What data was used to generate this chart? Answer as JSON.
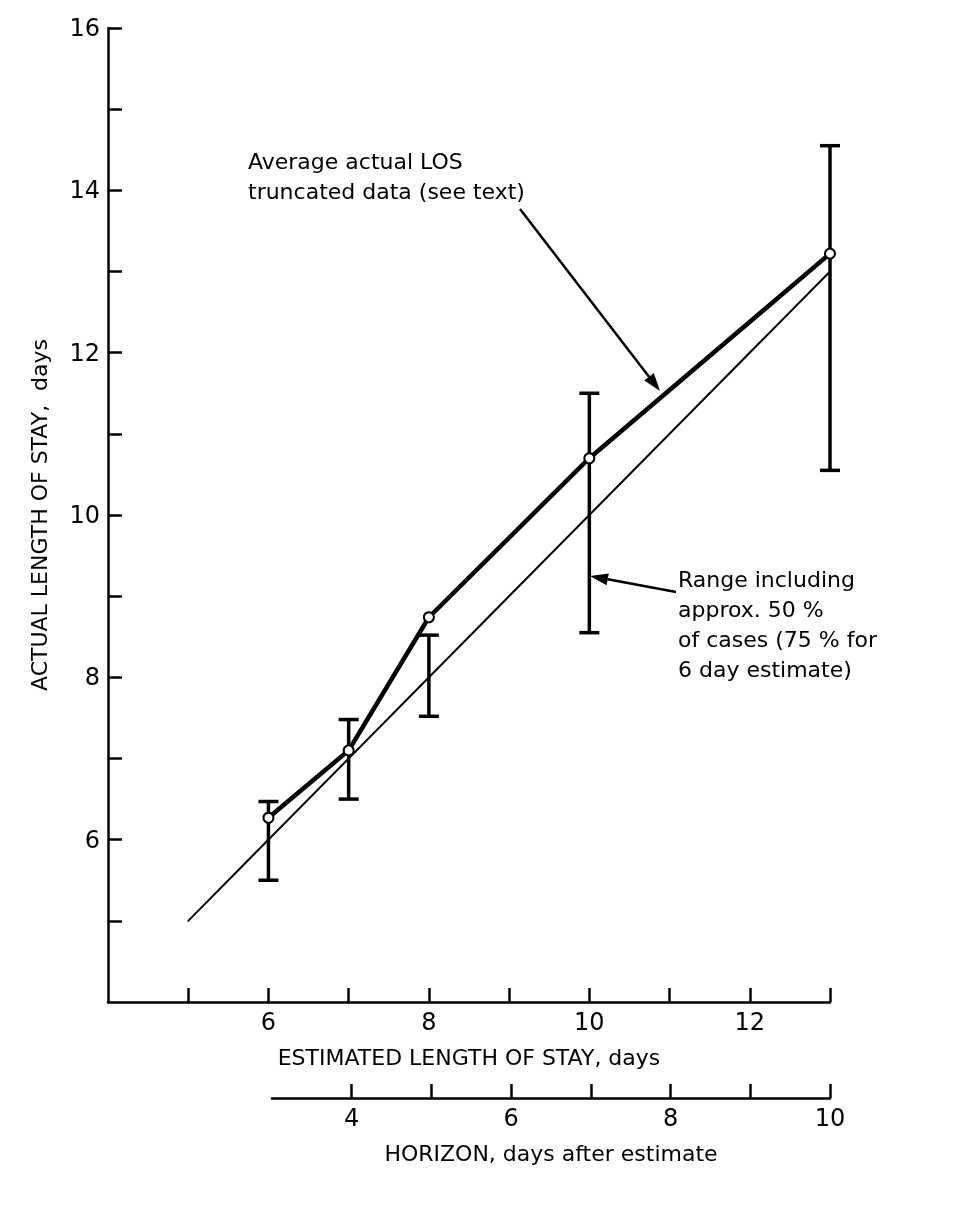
{
  "chart_data": {
    "type": "line",
    "xlabel": "ESTIMATED LENGTH OF STAY, days",
    "ylabel": "ACTUAL LENGTH OF STAY,  days",
    "x2label": "HORIZON, days after estimate",
    "xlim": [
      4,
      13
    ],
    "ylim": [
      4,
      16
    ],
    "x2lim": [
      3,
      10
    ],
    "xticks": [
      {
        "value": 5,
        "label": null
      },
      6,
      {
        "value": 7,
        "label": null
      },
      8,
      {
        "value": 9,
        "label": null
      },
      10,
      {
        "value": 11,
        "label": null
      },
      12,
      {
        "value": 13,
        "label": null
      }
    ],
    "x2ticks": [
      4,
      {
        "value": 5,
        "label": null
      },
      6,
      {
        "value": 7,
        "label": null
      },
      8,
      {
        "value": 9,
        "label": null
      },
      10
    ],
    "yticks": [
      {
        "value": 5,
        "label": null
      },
      6,
      {
        "value": 7,
        "label": null
      },
      8,
      {
        "value": 9,
        "label": null
      },
      10,
      {
        "value": 11,
        "label": null
      },
      12,
      {
        "value": 13,
        "label": null
      },
      14,
      {
        "value": 15,
        "label": null
      },
      16
    ],
    "grid": false,
    "series": [
      {
        "color": "#000000",
        "marker": "circle",
        "x": [
          6,
          7,
          8,
          10,
          13
        ],
        "values": [
          6.27,
          7.1,
          8.74,
          10.7,
          13.22
        ],
        "errors": [
          [
            5.5,
            6.47
          ],
          [
            6.5,
            7.48
          ],
          [
            7.52,
            8.52
          ],
          [
            8.55,
            11.5
          ],
          [
            10.55,
            14.55
          ]
        ]
      },
      {
        "color": "#000000",
        "marker": "none",
        "x": [
          5,
          13
        ],
        "values": [
          5,
          13
        ]
      }
    ],
    "annotations": [
      "Average actual LOS\ntruncated data (see text)",
      "Range including\napprox. 50 %\nof cases (75 % for\n6 day estimate)"
    ]
  }
}
